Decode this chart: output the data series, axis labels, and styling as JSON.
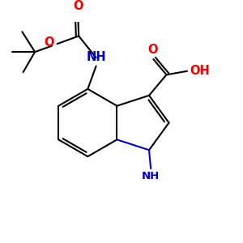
{
  "bg": "#ffffff",
  "bc": "#000000",
  "Nc": "#0000cc",
  "Oc": "#ee0000",
  "lw": 1.5,
  "fs": 9.5,
  "fig_size": [
    3.0,
    3.0
  ],
  "dpi": 100,
  "xlim": [
    -2.5,
    4.5
  ],
  "ylim": [
    -3.2,
    3.0
  ]
}
